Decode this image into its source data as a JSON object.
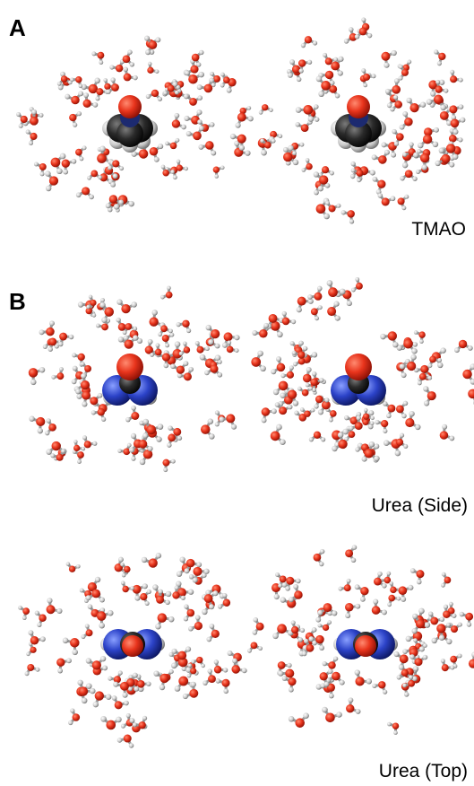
{
  "panels": [
    {
      "label": "A",
      "caption": "TMAO"
    },
    {
      "label": "B",
      "caption": "Urea (Side)"
    },
    {
      "caption": "Urea (Top)"
    }
  ]
}
